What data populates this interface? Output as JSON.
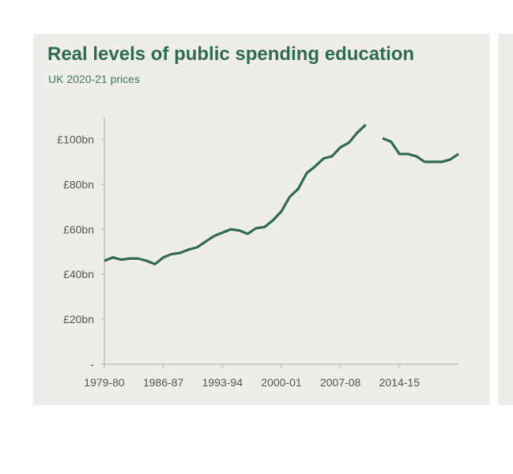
{
  "colors": {
    "line": "#2f6a50",
    "axis": "#b5b5b5",
    "card_background": "#efedea",
    "title": "#2e6b4f"
  },
  "chart_data": {
    "type": "line",
    "title": "Real levels of public spending education",
    "subtitle": "UK 2020-21 prices",
    "xlabel": "",
    "ylabel": "",
    "grid": false,
    "legend": "none",
    "ylim": [
      0,
      110
    ],
    "y_ticks": [
      {
        "value": 0,
        "label": "-"
      },
      {
        "value": 20,
        "label": "£20bn"
      },
      {
        "value": 40,
        "label": "£40bn"
      },
      {
        "value": 60,
        "label": "£60bn"
      },
      {
        "value": 80,
        "label": "£80bn"
      },
      {
        "value": 100,
        "label": "£100bn"
      }
    ],
    "x_tick_labels": [
      "1979-80",
      "1986-87",
      "1993-94",
      "2000-01",
      "2007-08",
      "2014-15"
    ],
    "x_tick_every": 7,
    "x": [
      "1979-80",
      "1980-81",
      "1981-82",
      "1982-83",
      "1983-84",
      "1984-85",
      "1985-86",
      "1986-87",
      "1987-88",
      "1988-89",
      "1989-90",
      "1990-91",
      "1991-92",
      "1992-93",
      "1993-94",
      "1994-95",
      "1995-96",
      "1996-97",
      "1997-98",
      "1998-99",
      "1999-00",
      "2000-01",
      "2001-02",
      "2002-03",
      "2003-04",
      "2004-05",
      "2005-06",
      "2006-07",
      "2007-08",
      "2008-09",
      "2009-10",
      "2010-11",
      "2011-12",
      "2012-13",
      "2013-14",
      "2014-15",
      "2015-16",
      "2016-17",
      "2017-18",
      "2018-19",
      "2019-20",
      "2020-21",
      "2021-22"
    ],
    "series": [
      {
        "values": [
          46,
          47.5,
          46.5,
          47,
          47,
          46,
          44.5,
          47.5,
          49,
          49.5,
          51,
          52,
          54.5,
          57,
          58.5,
          60,
          59.5,
          58,
          60.5,
          61,
          64,
          68,
          74.5,
          78,
          85,
          88,
          91.5,
          92.5,
          96.5,
          98.5,
          103,
          106.5,
          null,
          100.5,
          99,
          93.5,
          93.5,
          92.5,
          90,
          90,
          90,
          91,
          93.5
        ]
      }
    ]
  }
}
